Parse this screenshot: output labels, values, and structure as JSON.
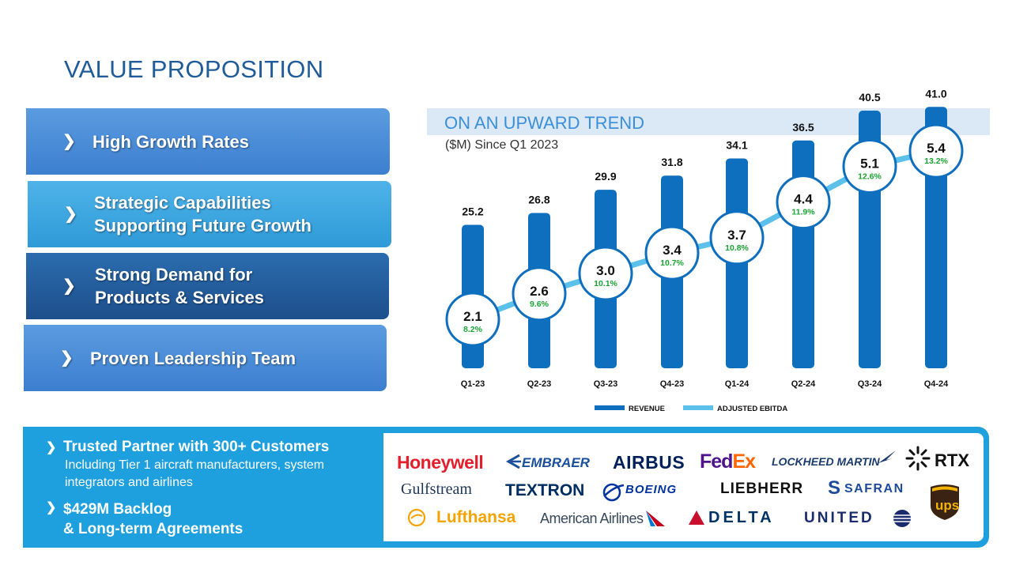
{
  "title": "VALUE PROPOSITION",
  "value_items": [
    {
      "line1": "High Growth Rates",
      "line2": ""
    },
    {
      "line1": "Strategic Capabilities",
      "line2": "Supporting Future Growth"
    },
    {
      "line1": "Strong Demand for",
      "line2": "Products & Services"
    },
    {
      "line1": "Proven Leadership Team",
      "line2": ""
    }
  ],
  "chevron": "❯",
  "trend_title": "ON AN UPWARD TREND",
  "trend_subtitle": "($M) Since Q1 2023",
  "chart_data": {
    "type": "bar",
    "categories": [
      "Q1-23",
      "Q2-23",
      "Q3-23",
      "Q4-23",
      "Q1-24",
      "Q2-24",
      "Q3-24",
      "Q4-24"
    ],
    "series": [
      {
        "name": "REVENUE",
        "values": [
          25.2,
          26.8,
          29.9,
          31.8,
          34.1,
          36.5,
          40.5,
          41.0
        ],
        "labels": [
          "25.2",
          "26.8",
          "29.9",
          "31.8",
          "34.1",
          "36.5",
          "40.5",
          "41.0"
        ],
        "color": "#0f6fbf"
      },
      {
        "name": "ADJUSTED EBITDA",
        "values": [
          2.1,
          2.6,
          3.0,
          3.4,
          3.7,
          4.4,
          5.1,
          5.4
        ],
        "labels": [
          "2.1",
          "2.6",
          "3.0",
          "3.4",
          "3.7",
          "4.4",
          "5.1",
          "5.4"
        ],
        "margins": [
          "8.2%",
          "9.6%",
          "10.1%",
          "10.7%",
          "10.8%",
          "11.9%",
          "12.6%",
          "13.2%"
        ],
        "color": "#5bc0ea"
      }
    ],
    "legend": "bottom",
    "grid": false
  },
  "bottom": {
    "head1": "Trusted Partner with 300+ Customers",
    "sub1_line1": "Including Tier 1 aircraft manufacturers, system",
    "sub1_line2": "integrators and airlines",
    "head2_line1": "$429M Backlog",
    "head2_line2": "& Long-term Agreements"
  },
  "logos": {
    "honeywell": "Honeywell",
    "embraer": "EMBRAER",
    "airbus": "AIRBUS",
    "fedex_fed": "Fed",
    "fedex_ex": "Ex",
    "lockheed": "LOCKHEED MARTIN",
    "rtx": "RTX",
    "gulfstream": "Gulfstream",
    "textron": "TEXTRON",
    "boeing": "BOEING",
    "liebherr": "LIEBHERR",
    "safran": "SAFRAN",
    "ups": "ups",
    "lufthansa": "Lufthansa",
    "american": "American Airlines",
    "delta": "DELTA",
    "united": "UNITED"
  },
  "colors": {
    "bar": "#0f6fbf",
    "line": "#5bc0ea",
    "margin_text": "#1aa632",
    "title": "#1f5c99"
  }
}
